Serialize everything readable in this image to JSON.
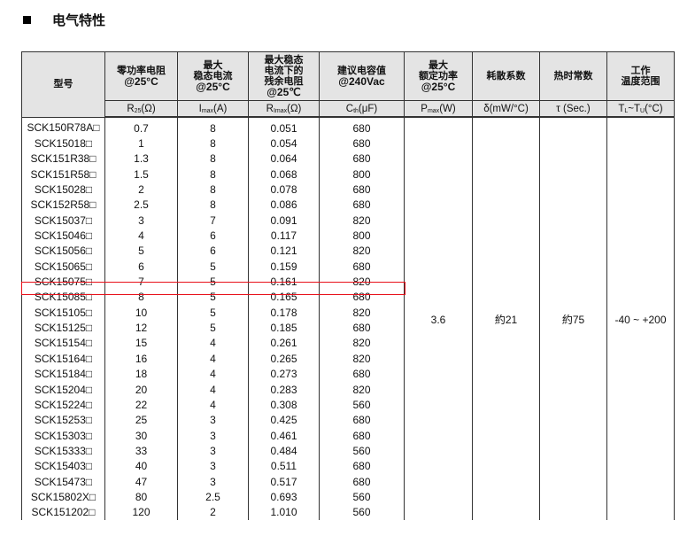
{
  "title": "电气特性",
  "header": [
    {
      "lines": [
        "型号"
      ],
      "unit": null
    },
    {
      "lines": [
        "零功率电阻",
        "@25°C"
      ],
      "unit": {
        "main": "R",
        "sub": "25",
        "rest": "(Ω)"
      }
    },
    {
      "lines": [
        "最大",
        "稳态电流",
        "@25°C"
      ],
      "unit": {
        "main": "I",
        "sub": "max",
        "rest": "(A)"
      }
    },
    {
      "lines": [
        "最大稳态",
        "电流下的",
        "残余电阻",
        "@25℃"
      ],
      "unit": {
        "main": "R",
        "sub": "Imax",
        "rest": "(Ω)"
      }
    },
    {
      "lines": [
        "建议电容值",
        "@240Vac"
      ],
      "unit": {
        "main": "C",
        "sub": "th",
        "rest": "(μF)"
      }
    },
    {
      "lines": [
        "最大",
        "额定功率",
        "@25°C"
      ],
      "unit": {
        "main": "P",
        "sub": "max",
        "rest": "(W)"
      }
    },
    {
      "lines": [
        "耗散系数"
      ],
      "unit": {
        "main": "δ(mW/°C)",
        "sub": "",
        "rest": ""
      }
    },
    {
      "lines": [
        "热时常数"
      ],
      "unit": {
        "main": "τ (Sec.)",
        "sub": "",
        "rest": ""
      }
    },
    {
      "lines": [
        "工作",
        "温度范围"
      ],
      "unit": {
        "main": "T",
        "sub": "L",
        "rest": "~T",
        "sub2": "U",
        "rest2": "(°C)"
      }
    }
  ],
  "rows": [
    [
      "SCK150R78A□",
      "0.7",
      "8",
      "0.051",
      "680"
    ],
    [
      "SCK15018□",
      "1",
      "8",
      "0.054",
      "680"
    ],
    [
      "SCK151R38□",
      "1.3",
      "8",
      "0.064",
      "680"
    ],
    [
      "SCK151R58□",
      "1.5",
      "8",
      "0.068",
      "800"
    ],
    [
      "SCK15028□",
      "2",
      "8",
      "0.078",
      "680"
    ],
    [
      "SCK152R58□",
      "2.5",
      "8",
      "0.086",
      "680"
    ],
    [
      "SCK15037□",
      "3",
      "7",
      "0.091",
      "820"
    ],
    [
      "SCK15046□",
      "4",
      "6",
      "0.117",
      "800"
    ],
    [
      "SCK15056□",
      "5",
      "6",
      "0.121",
      "820"
    ],
    [
      "SCK15065□",
      "6",
      "5",
      "0.159",
      "680"
    ],
    [
      "SCK15075□",
      "7",
      "5",
      "0.161",
      "820"
    ],
    [
      "SCK15085□",
      "8",
      "5",
      "0.165",
      "680"
    ],
    [
      "SCK15105□",
      "10",
      "5",
      "0.178",
      "820"
    ],
    [
      "SCK15125□",
      "12",
      "5",
      "0.185",
      "680"
    ],
    [
      "SCK15154□",
      "15",
      "4",
      "0.261",
      "820"
    ],
    [
      "SCK15164□",
      "16",
      "4",
      "0.265",
      "820"
    ],
    [
      "SCK15184□",
      "18",
      "4",
      "0.273",
      "680"
    ],
    [
      "SCK15204□",
      "20",
      "4",
      "0.283",
      "820"
    ],
    [
      "SCK15224□",
      "22",
      "4",
      "0.308",
      "560"
    ],
    [
      "SCK15253□",
      "25",
      "3",
      "0.425",
      "680"
    ],
    [
      "SCK15303□",
      "30",
      "3",
      "0.461",
      "680"
    ],
    [
      "SCK15333□",
      "33",
      "3",
      "0.484",
      "560"
    ],
    [
      "SCK15403□",
      "40",
      "3",
      "0.511",
      "680"
    ],
    [
      "SCK15473□",
      "47",
      "3",
      "0.517",
      "680"
    ],
    [
      "SCK15802X□",
      "80",
      "2.5",
      "0.693",
      "560"
    ],
    [
      "SCK151202□",
      "120",
      "2",
      "1.010",
      "560"
    ]
  ],
  "shared": [
    "3.6",
    "約21",
    "約75",
    "-40 ~ +200"
  ],
  "highlight_row_index": 10,
  "highlight_color": "#e8101a"
}
